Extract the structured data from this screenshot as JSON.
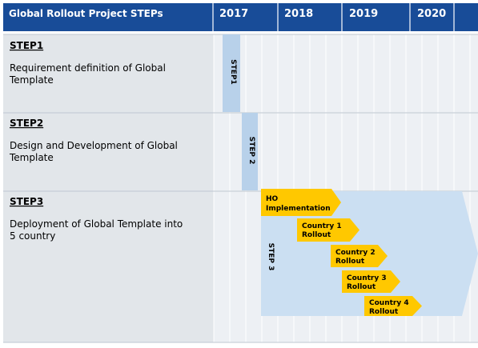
{
  "header": {
    "title": "Global Rollout Project STEPs",
    "years": [
      "2017",
      "2018",
      "2019",
      "2020"
    ]
  },
  "steps": [
    {
      "id": "STEP1",
      "label": "STEP1",
      "desc_lines": [
        "Requirement definition of Global",
        "Template"
      ],
      "vertical_label": "STEP1"
    },
    {
      "id": "STEP2",
      "label": "STEP2",
      "desc_lines": [
        "Design and Development of Global",
        "Template"
      ],
      "vertical_label": "STEP 2"
    },
    {
      "id": "STEP3",
      "label": "STEP3",
      "desc_lines": [
        "Deployment of Global Template into",
        "5 country"
      ],
      "vertical_label": "STEP 3"
    }
  ],
  "rollout_items": [
    {
      "label_lines": [
        "HO",
        "Implementation"
      ]
    },
    {
      "label_lines": [
        "Country 1",
        "Rollout"
      ]
    },
    {
      "label_lines": [
        "Country 2",
        "Rollout"
      ]
    },
    {
      "label_lines": [
        "Country 3",
        "Rollout"
      ]
    },
    {
      "label_lines": [
        "Country 4",
        "Rollout"
      ]
    }
  ],
  "colors": {
    "header_bg": "#184c98",
    "left_bg": "#e2e6ea",
    "grid_bg": "#edf0f4",
    "grid_line": "#ffffff",
    "bar_blue": "#b8d1ea",
    "bar_blue_light": "#cbdff2",
    "arrow_yellow": "#ffc800",
    "divider": "#bfc7d1",
    "text": "#000000",
    "header_text": "#ffffff"
  },
  "icons": {
    "bar_shape": "vertical-bar",
    "arrow_shape": "right-arrow",
    "big_arrow_shape": "large-right-arrow"
  }
}
